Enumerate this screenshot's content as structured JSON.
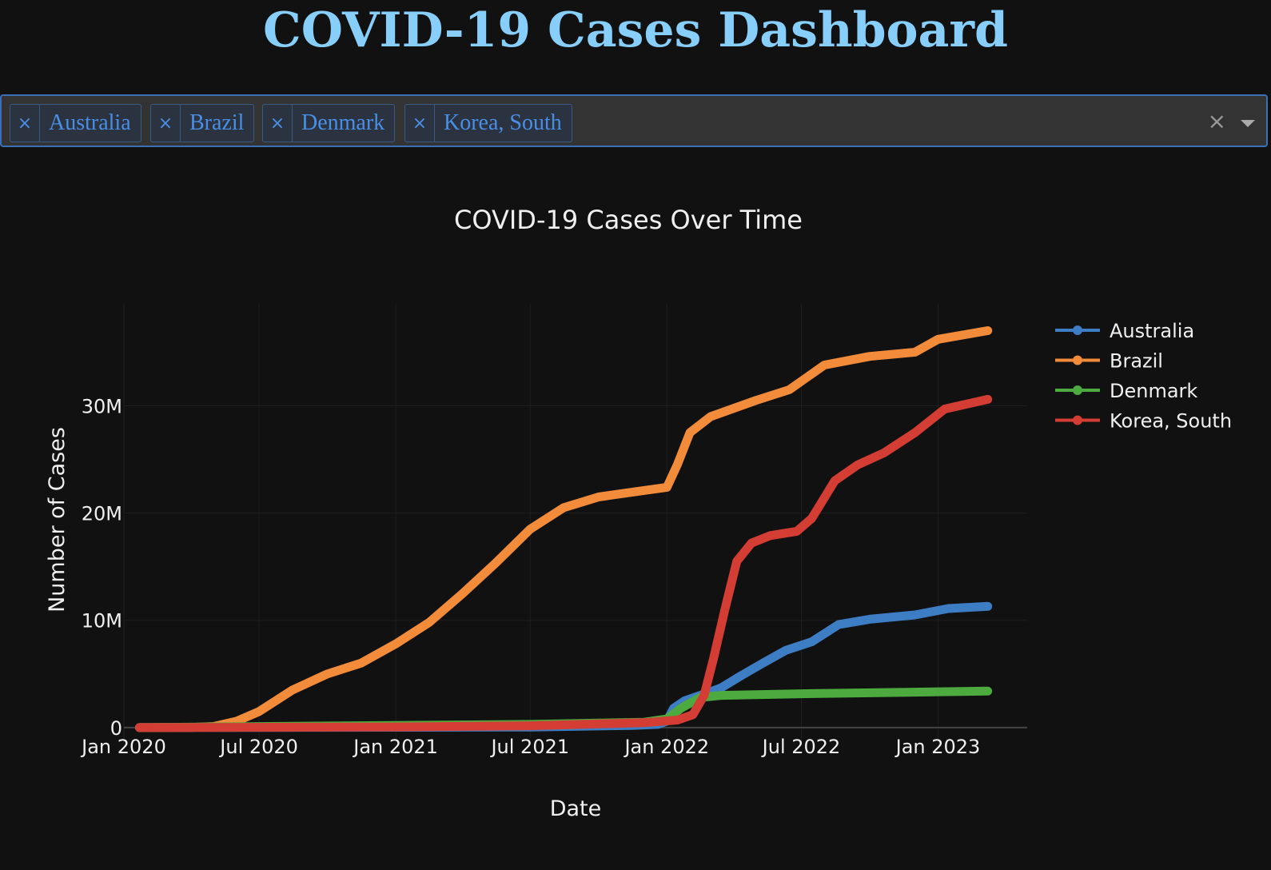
{
  "page": {
    "title": "COVID-19 Cases Dashboard"
  },
  "country_selector": {
    "selected": [
      "Australia",
      "Brazil",
      "Denmark",
      "Korea, South"
    ],
    "remove_glyph": "×",
    "clear_glyph": "×"
  },
  "chart_data": {
    "type": "line",
    "title": "COVID-19 Cases Over Time",
    "xlabel": "Date",
    "ylabel": "Number of Cases",
    "x_ticks": [
      "Jan 2020",
      "Jul 2020",
      "Jan 2021",
      "Jul 2021",
      "Jan 2022",
      "Jul 2022",
      "Jan 2023"
    ],
    "x_range": [
      "2020-01-01",
      "2023-05-01"
    ],
    "y_ticks": [
      {
        "value": 0,
        "label": "0"
      },
      {
        "value": 10000000,
        "label": "10M"
      },
      {
        "value": 20000000,
        "label": "20M"
      },
      {
        "value": 30000000,
        "label": "30M"
      }
    ],
    "ylim": [
      -1500000,
      39500000
    ],
    "grid": true,
    "legend_position": "top-right",
    "series": [
      {
        "name": "Australia",
        "color": "#3d7dc4",
        "points": [
          [
            "2020-01-22",
            0
          ],
          [
            "2020-07-01",
            10000
          ],
          [
            "2021-01-01",
            30000
          ],
          [
            "2021-07-01",
            50000
          ],
          [
            "2021-11-15",
            200000
          ],
          [
            "2021-12-20",
            300000
          ],
          [
            "2022-01-01",
            600000
          ],
          [
            "2022-01-10",
            1800000
          ],
          [
            "2022-01-25",
            2500000
          ],
          [
            "2022-02-15",
            3000000
          ],
          [
            "2022-03-15",
            3700000
          ],
          [
            "2022-04-10",
            4800000
          ],
          [
            "2022-05-10",
            6000000
          ],
          [
            "2022-06-10",
            7200000
          ],
          [
            "2022-07-15",
            8000000
          ],
          [
            "2022-08-20",
            9600000
          ],
          [
            "2022-10-01",
            10100000
          ],
          [
            "2022-12-01",
            10500000
          ],
          [
            "2023-01-15",
            11100000
          ],
          [
            "2023-03-09",
            11300000
          ]
        ]
      },
      {
        "name": "Brazil",
        "color": "#f28b3a",
        "points": [
          [
            "2020-01-22",
            0
          ],
          [
            "2020-04-01",
            10000
          ],
          [
            "2020-05-01",
            100000
          ],
          [
            "2020-06-01",
            600000
          ],
          [
            "2020-07-01",
            1500000
          ],
          [
            "2020-08-15",
            3500000
          ],
          [
            "2020-10-01",
            5000000
          ],
          [
            "2020-11-15",
            6000000
          ],
          [
            "2021-01-01",
            7800000
          ],
          [
            "2021-02-15",
            9800000
          ],
          [
            "2021-04-01",
            12500000
          ],
          [
            "2021-05-15",
            15300000
          ],
          [
            "2021-07-01",
            18500000
          ],
          [
            "2021-08-15",
            20500000
          ],
          [
            "2021-10-01",
            21500000
          ],
          [
            "2021-12-01",
            22100000
          ],
          [
            "2022-01-01",
            22400000
          ],
          [
            "2022-01-15",
            24500000
          ],
          [
            "2022-02-01",
            27500000
          ],
          [
            "2022-03-01",
            29000000
          ],
          [
            "2022-05-01",
            30500000
          ],
          [
            "2022-06-15",
            31500000
          ],
          [
            "2022-08-01",
            33800000
          ],
          [
            "2022-10-01",
            34600000
          ],
          [
            "2022-12-01",
            35000000
          ],
          [
            "2023-01-01",
            36200000
          ],
          [
            "2023-03-09",
            37000000
          ]
        ]
      },
      {
        "name": "Denmark",
        "color": "#4caa3e",
        "points": [
          [
            "2020-01-22",
            0
          ],
          [
            "2021-01-01",
            200000
          ],
          [
            "2021-07-01",
            300000
          ],
          [
            "2021-12-01",
            500000
          ],
          [
            "2022-01-01",
            800000
          ],
          [
            "2022-01-20",
            1800000
          ],
          [
            "2022-02-15",
            2800000
          ],
          [
            "2022-03-15",
            3000000
          ],
          [
            "2022-07-01",
            3150000
          ],
          [
            "2023-03-09",
            3400000
          ]
        ]
      },
      {
        "name": "Korea, South",
        "color": "#d43d34",
        "points": [
          [
            "2020-01-22",
            0
          ],
          [
            "2021-01-01",
            60000
          ],
          [
            "2021-07-01",
            170000
          ],
          [
            "2021-12-01",
            450000
          ],
          [
            "2022-01-15",
            700000
          ],
          [
            "2022-02-05",
            1200000
          ],
          [
            "2022-02-20",
            3000000
          ],
          [
            "2022-03-05",
            6500000
          ],
          [
            "2022-03-20",
            11000000
          ],
          [
            "2022-04-05",
            15500000
          ],
          [
            "2022-04-25",
            17200000
          ],
          [
            "2022-05-20",
            17900000
          ],
          [
            "2022-06-25",
            18300000
          ],
          [
            "2022-07-15",
            19500000
          ],
          [
            "2022-08-15",
            23000000
          ],
          [
            "2022-09-15",
            24500000
          ],
          [
            "2022-10-20",
            25600000
          ],
          [
            "2022-12-01",
            27500000
          ],
          [
            "2023-01-10",
            29700000
          ],
          [
            "2023-03-09",
            30600000
          ]
        ]
      }
    ]
  }
}
